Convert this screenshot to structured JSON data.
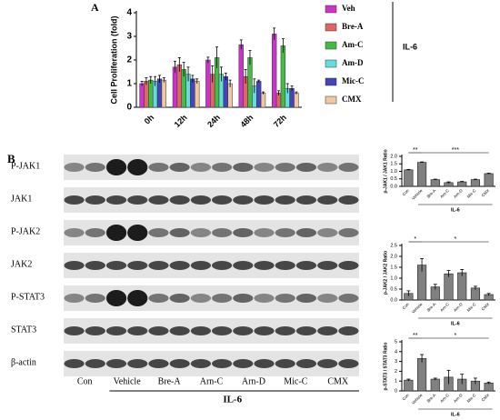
{
  "chart_data": [
    {
      "type": "bar",
      "label": "A",
      "ylabel": "Cell Proliferation (fold)",
      "categories": [
        "0h",
        "12h",
        "24h",
        "48h",
        "72h"
      ],
      "series": [
        {
          "name": "Veh",
          "color": "#cc33cc",
          "values": [
            1.0,
            1.7,
            2.0,
            2.65,
            3.1
          ],
          "errors": [
            0.1,
            0.25,
            0.12,
            0.2,
            0.25
          ]
        },
        {
          "name": "Bre-A",
          "color": "#e06666",
          "values": [
            1.1,
            1.8,
            1.4,
            1.3,
            0.6
          ],
          "errors": [
            0.15,
            0.3,
            0.35,
            0.3,
            0.1
          ]
        },
        {
          "name": "Am-C",
          "color": "#44bb44",
          "values": [
            1.15,
            1.6,
            2.1,
            2.1,
            2.6
          ],
          "errors": [
            0.15,
            0.3,
            0.45,
            0.3,
            0.3
          ]
        },
        {
          "name": "Am-D",
          "color": "#66dddd",
          "values": [
            1.1,
            1.4,
            1.4,
            0.9,
            0.8
          ],
          "errors": [
            0.2,
            0.3,
            0.3,
            0.3,
            0.2
          ]
        },
        {
          "name": "Mic-C",
          "color": "#4444bb",
          "values": [
            1.2,
            1.2,
            1.3,
            1.1,
            0.8
          ],
          "errors": [
            0.15,
            0.15,
            0.15,
            0.05,
            0.1
          ]
        },
        {
          "name": "CMX",
          "color": "#f0c8a0",
          "values": [
            1.15,
            1.1,
            1.0,
            0.6,
            0.6
          ],
          "errors": [
            0.1,
            0.1,
            0.15,
            0.05,
            0.05
          ]
        }
      ],
      "ylim": [
        0,
        4
      ],
      "yticks": [
        0,
        1,
        2,
        3,
        4
      ],
      "group_label": "IL-6"
    },
    {
      "type": "bar",
      "ylabel": "p-JAK1 / JAK1 Ratio",
      "color": "#808080",
      "categories": [
        "Con",
        "Vehicle",
        "Bre-A",
        "Arn-C",
        "Arn-D",
        "Mic-C",
        "CMX"
      ],
      "values": [
        1.1,
        1.6,
        0.45,
        0.25,
        0.3,
        0.45,
        0.85
      ],
      "errors": [
        0.03,
        0.03,
        0.03,
        0.05,
        0.03,
        0.03,
        0.03
      ],
      "ylim": [
        0,
        2
      ],
      "yticks": [
        {
          "value": 0,
          "label": "0.0"
        },
        {
          "value": 0.5,
          "label": "0.5"
        },
        {
          "value": 1,
          "label": "1.0"
        },
        {
          "value": 1.5,
          "label": "1.5"
        },
        {
          "value": 2,
          "label": "2.0"
        }
      ],
      "annotations": [
        {
          "text": "**",
          "from": "Con",
          "to": "Vehicle"
        },
        {
          "text": "***",
          "from": "Vehicle",
          "to": "CMX"
        }
      ],
      "group": {
        "label": "IL-6",
        "from": "Vehicle",
        "to": "CMX"
      }
    },
    {
      "type": "bar",
      "ylabel": "p-JAK2 / JAK2 Ratio",
      "color": "#808080",
      "categories": [
        "Con",
        "Vehicle",
        "Bre-A",
        "Arn-C",
        "Arn-D",
        "Mic-C",
        "CMX"
      ],
      "values": [
        0.3,
        1.6,
        0.6,
        1.2,
        1.25,
        0.55,
        0.25
      ],
      "errors": [
        0.12,
        0.3,
        0.12,
        0.15,
        0.15,
        0.08,
        0.05
      ],
      "ylim": [
        0,
        2.5
      ],
      "yticks": [
        {
          "value": 0,
          "label": "0.0"
        },
        {
          "value": 0.5,
          "label": "0.5"
        },
        {
          "value": 1,
          "label": "1.0"
        },
        {
          "value": 1.5,
          "label": "1.5"
        },
        {
          "value": 2,
          "label": "2.0"
        },
        {
          "value": 2.5,
          "label": "2.5"
        }
      ],
      "annotations": [
        {
          "text": "*",
          "from": "Con",
          "to": "Vehicle"
        },
        {
          "text": "*",
          "from": "Vehicle",
          "to": "CMX"
        }
      ],
      "group": {
        "label": "IL-6",
        "from": "Vehicle",
        "to": "CMX"
      }
    },
    {
      "type": "bar",
      "ylabel": "p-STAT3 / STAT3 Ratio",
      "color": "#808080",
      "categories": [
        "Con",
        "Vehicle",
        "Bre-A",
        "Arn-C",
        "Arn-D",
        "Mic-C",
        "CMX"
      ],
      "values": [
        1.1,
        3.3,
        1.2,
        1.4,
        1.2,
        1.0,
        0.8
      ],
      "errors": [
        0.1,
        0.4,
        0.1,
        0.7,
        0.5,
        0.3,
        0.1
      ],
      "ylim": [
        0,
        5
      ],
      "yticks": [
        0,
        1,
        2,
        3,
        4,
        5
      ],
      "annotations": [
        {
          "text": "**",
          "from": "Con",
          "to": "Vehicle"
        },
        {
          "text": "*",
          "from": "Vehicle",
          "to": "CMX"
        }
      ],
      "group": {
        "label": "IL-6",
        "from": "Vehicle",
        "to": "CMX"
      }
    }
  ],
  "blot": {
    "label": "B",
    "rows": [
      "P-JAK1",
      "JAK1",
      "P-JAK2",
      "JAK2",
      "P-STAT3",
      "STAT3",
      "β-actin"
    ],
    "lanes": [
      "Con",
      "Vehicle",
      "Bre-A",
      "Arn-C",
      "Arn-D",
      "Mic-C",
      "CMX"
    ],
    "group_label": "IL-6"
  }
}
